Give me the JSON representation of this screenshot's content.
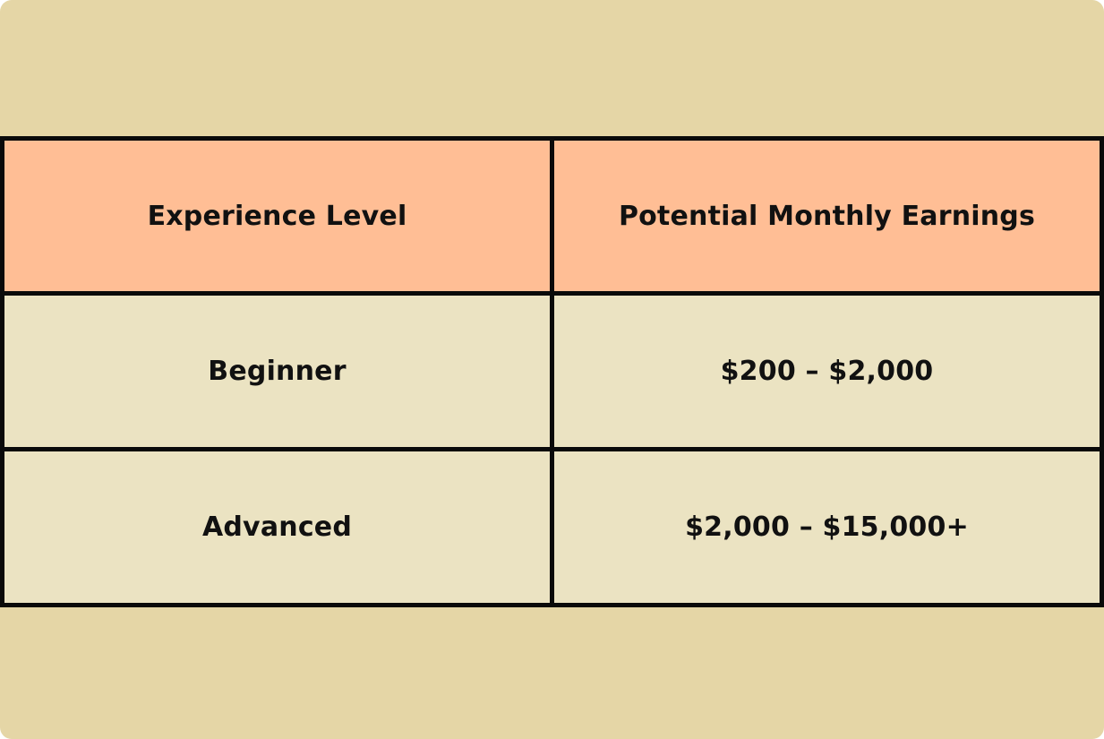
{
  "theme": {
    "page-bg": "#e5d6a6",
    "header-bg": "#ffbe95",
    "row-bg": "#ebe3c2",
    "border-color": "#0a0a0a",
    "text-color": "#111111",
    "outer-bg": "#ffffff"
  },
  "table": {
    "columns": [
      "Experience Level",
      "Potential Monthly Earnings"
    ],
    "rows": [
      {
        "level": "Beginner",
        "earnings": "$200 – $2,000"
      },
      {
        "level": "Advanced",
        "earnings": "$2,000 – $15,000+"
      }
    ]
  },
  "chart_data": {
    "type": "table",
    "title": "",
    "columns": [
      "Experience Level",
      "Potential Monthly Earnings"
    ],
    "rows": [
      [
        "Beginner",
        "$200 – $2,000"
      ],
      [
        "Advanced",
        "$2,000 – $15,000+"
      ]
    ]
  }
}
